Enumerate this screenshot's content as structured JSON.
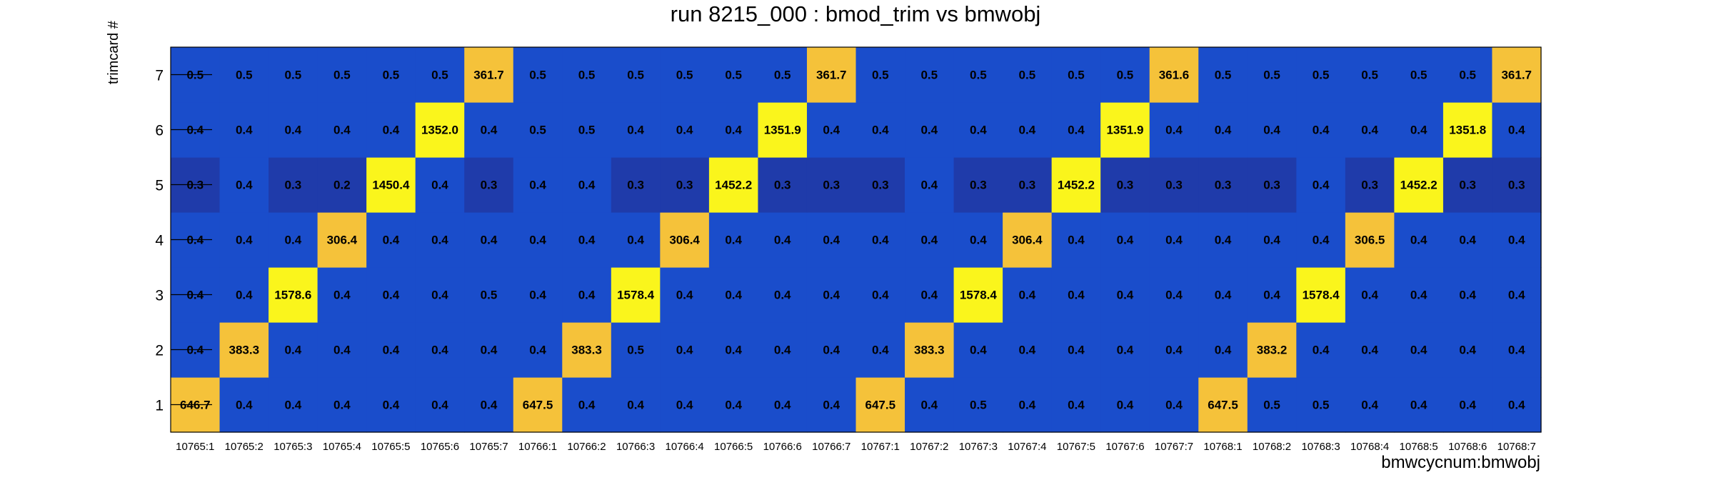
{
  "chart_data": {
    "type": "heatmap",
    "title": "run 8215_000 : bmod_trim vs bmwobj",
    "xlabel": "bmwcycnum:bmwobj",
    "ylabel": "trimcard #",
    "x_categories": [
      "10765:1",
      "10765:2",
      "10765:3",
      "10765:4",
      "10765:5",
      "10765:6",
      "10765:7",
      "10766:1",
      "10766:2",
      "10766:3",
      "10766:4",
      "10766:5",
      "10766:6",
      "10766:7",
      "10767:1",
      "10767:2",
      "10767:3",
      "10767:4",
      "10767:5",
      "10767:6",
      "10767:7",
      "10768:1",
      "10768:2",
      "10768:3",
      "10768:4",
      "10768:5",
      "10768:6",
      "10768:7"
    ],
    "y_categories": [
      "1",
      "2",
      "3",
      "4",
      "5",
      "6",
      "7"
    ],
    "values": [
      [
        "646.7",
        "0.4",
        "0.4",
        "0.4",
        "0.4",
        "0.4",
        "0.4",
        "647.5",
        "0.4",
        "0.4",
        "0.4",
        "0.4",
        "0.4",
        "0.4",
        "647.5",
        "0.4",
        "0.5",
        "0.4",
        "0.4",
        "0.4",
        "0.4",
        "647.5",
        "0.5",
        "0.5",
        "0.4",
        "0.4",
        "0.4",
        "0.4"
      ],
      [
        "0.4",
        "383.3",
        "0.4",
        "0.4",
        "0.4",
        "0.4",
        "0.4",
        "0.4",
        "383.3",
        "0.5",
        "0.4",
        "0.4",
        "0.4",
        "0.4",
        "0.4",
        "383.3",
        "0.4",
        "0.4",
        "0.4",
        "0.4",
        "0.4",
        "0.4",
        "383.2",
        "0.4",
        "0.4",
        "0.4",
        "0.4",
        "0.4"
      ],
      [
        "0.4",
        "0.4",
        "1578.6",
        "0.4",
        "0.4",
        "0.4",
        "0.5",
        "0.4",
        "0.4",
        "1578.4",
        "0.4",
        "0.4",
        "0.4",
        "0.4",
        "0.4",
        "0.4",
        "1578.4",
        "0.4",
        "0.4",
        "0.4",
        "0.4",
        "0.4",
        "0.4",
        "1578.4",
        "0.4",
        "0.4",
        "0.4",
        "0.4"
      ],
      [
        "0.4",
        "0.4",
        "0.4",
        "306.4",
        "0.4",
        "0.4",
        "0.4",
        "0.4",
        "0.4",
        "0.4",
        "306.4",
        "0.4",
        "0.4",
        "0.4",
        "0.4",
        "0.4",
        "0.4",
        "306.4",
        "0.4",
        "0.4",
        "0.4",
        "0.4",
        "0.4",
        "0.4",
        "306.5",
        "0.4",
        "0.4",
        "0.4"
      ],
      [
        "0.3",
        "0.4",
        "0.3",
        "0.2",
        "1450.4",
        "0.4",
        "0.3",
        "0.4",
        "0.4",
        "0.3",
        "0.3",
        "1452.2",
        "0.3",
        "0.3",
        "0.3",
        "0.4",
        "0.3",
        "0.3",
        "1452.2",
        "0.3",
        "0.3",
        "0.3",
        "0.3",
        "0.4",
        "0.3",
        "1452.2",
        "0.3",
        "0.3"
      ],
      [
        "0.4",
        "0.4",
        "0.4",
        "0.4",
        "0.4",
        "1352.0",
        "0.4",
        "0.5",
        "0.5",
        "0.4",
        "0.4",
        "0.4",
        "1351.9",
        "0.4",
        "0.4",
        "0.4",
        "0.4",
        "0.4",
        "0.4",
        "1351.9",
        "0.4",
        "0.4",
        "0.4",
        "0.4",
        "0.4",
        "0.4",
        "1351.8",
        "0.4"
      ],
      [
        "0.5",
        "0.5",
        "0.5",
        "0.5",
        "0.5",
        "0.5",
        "361.7",
        "0.5",
        "0.5",
        "0.5",
        "0.5",
        "0.5",
        "0.5",
        "361.7",
        "0.5",
        "0.5",
        "0.5",
        "0.5",
        "0.5",
        "0.5",
        "361.6",
        "0.5",
        "0.5",
        "0.5",
        "0.5",
        "0.5",
        "0.5",
        "361.7"
      ]
    ],
    "colors": {
      "cell_default": "#1A4DCB",
      "cell_dark": "#1F3BAA",
      "cell_low_peak": "#F5C23A",
      "cell_high_peak": "#FAF51C",
      "cell_text": "#000000",
      "frame": "#000000"
    },
    "grid": false,
    "legend": "none"
  }
}
